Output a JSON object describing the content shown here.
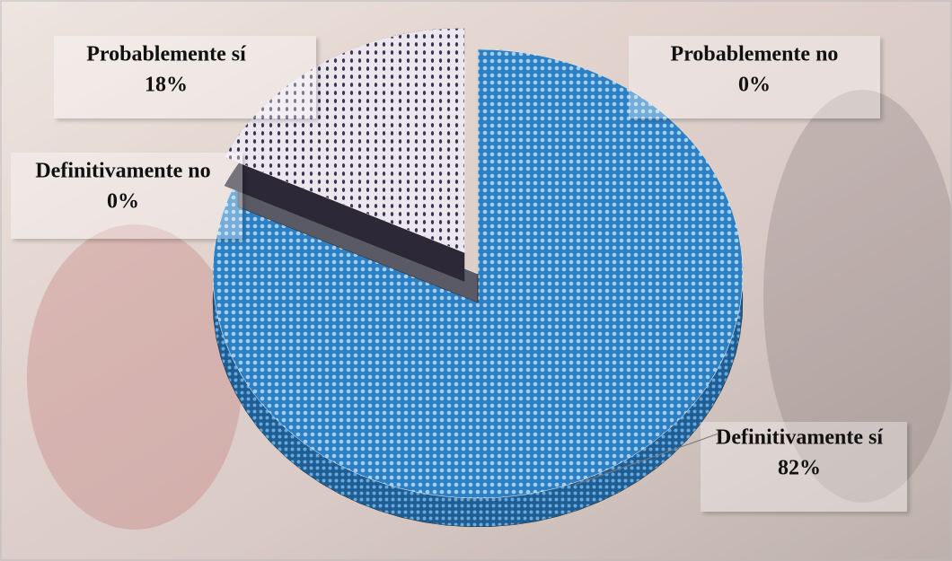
{
  "chart_data": {
    "type": "pie",
    "categories": [
      "Definitivamente sí",
      "Definitivamente no",
      "Probablemente sí",
      "Probablemente no"
    ],
    "values": [
      82,
      0,
      18,
      0
    ],
    "value_labels": [
      "82%",
      "0%",
      "18%",
      "0%"
    ],
    "colors": [
      "#2e7fc2",
      "#5a5a66",
      "#d9d3dc",
      "#8a8a8a"
    ],
    "exploded": [
      false,
      false,
      true,
      false
    ]
  }
}
